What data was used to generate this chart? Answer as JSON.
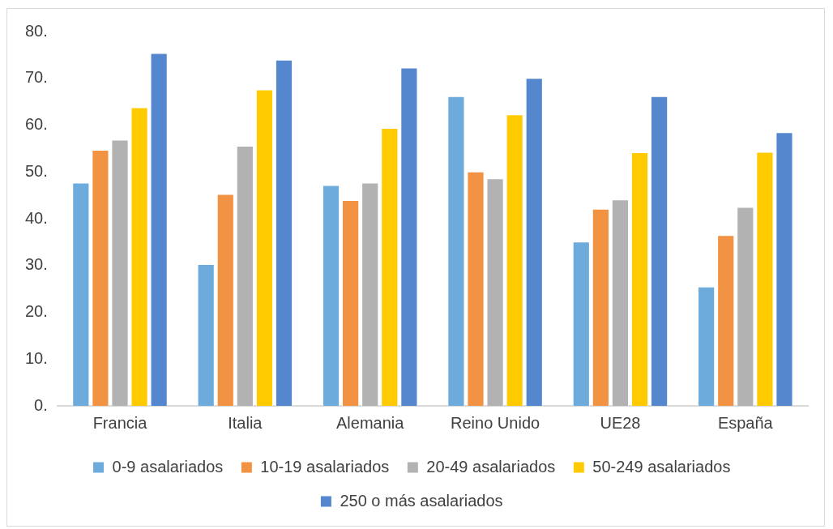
{
  "chart_data": {
    "type": "bar",
    "categories": [
      "Francia",
      "Italia",
      "Alemania",
      "Reino Unido",
      "UE28",
      "España"
    ],
    "series": [
      {
        "name": "0-9 asalariados",
        "color": "#6dabdc",
        "values": [
          47.7,
          30.3,
          47.2,
          66.2,
          35.1,
          25.5
        ]
      },
      {
        "name": "10-19 asalariados",
        "color": "#f29343",
        "values": [
          54.7,
          45.3,
          44.0,
          50.1,
          42.1,
          36.5
        ]
      },
      {
        "name": "20-49 asalariados",
        "color": "#b2b2b2",
        "values": [
          56.9,
          55.6,
          47.7,
          48.6,
          44.1,
          42.5
        ]
      },
      {
        "name": "50-249 asalariados",
        "color": "#ffcb00",
        "values": [
          63.8,
          67.6,
          59.4,
          62.3,
          54.2,
          54.3
        ]
      },
      {
        "name": "250 o más asalariados",
        "color": "#5587cf",
        "values": [
          75.4,
          74.0,
          72.3,
          70.1,
          66.2,
          58.5
        ]
      }
    ],
    "ylim": [
      0,
      80
    ],
    "yticks": [
      {
        "value": 0,
        "label": "0."
      },
      {
        "value": 10,
        "label": "10."
      },
      {
        "value": 20,
        "label": "20."
      },
      {
        "value": 30,
        "label": "30."
      },
      {
        "value": 40,
        "label": "40."
      },
      {
        "value": 50,
        "label": "50."
      },
      {
        "value": 60,
        "label": "60."
      },
      {
        "value": 70,
        "label": "70."
      },
      {
        "value": 80,
        "label": "80."
      }
    ],
    "grid": false,
    "legend": "bottom"
  }
}
